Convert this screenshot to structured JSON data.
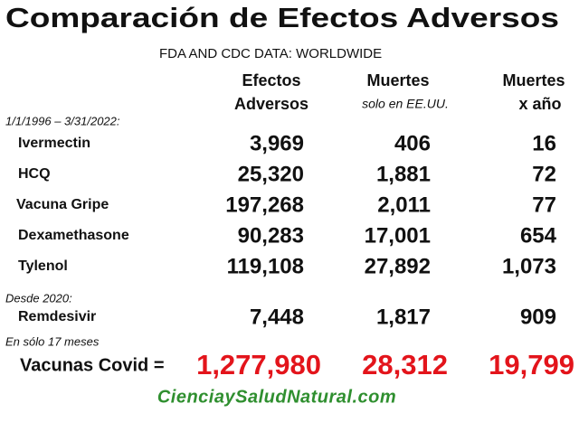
{
  "title": "Comparación de Efectos Adversos",
  "subtitle": "FDA AND CDC DATA: WORLDWIDE",
  "headers": [
    [
      "Efectos",
      "Adversos"
    ],
    [
      "Muertes",
      "solo en EE.UU."
    ],
    [
      "Muertes",
      "x año"
    ]
  ],
  "sections": [
    {
      "label": "1/1/1996 – 3/31/2022:",
      "rows": [
        {
          "name": "Ivermectin",
          "values": [
            "3,969",
            "406",
            "16"
          ]
        },
        {
          "name": "HCQ",
          "values": [
            "25,320",
            "1,881",
            "72"
          ]
        },
        {
          "name": "Vacuna Gripe",
          "values": [
            "197,268",
            "2,011",
            "77"
          ]
        },
        {
          "name": "Dexamethasone",
          "values": [
            "90,283",
            "17,001",
            "654"
          ]
        },
        {
          "name": "Tylenol",
          "values": [
            "119,108",
            "27,892",
            "1,073"
          ]
        }
      ]
    },
    {
      "label": "Desde 2020:",
      "rows": [
        {
          "name": "Remdesivir",
          "values": [
            "7,448",
            "1,817",
            "909"
          ]
        }
      ]
    },
    {
      "label": "En sólo 17 meses",
      "rows": [
        {
          "name": "Vacunas Covid =",
          "values": [
            "1,277,980",
            "28,312",
            "19,799"
          ]
        }
      ]
    }
  ],
  "footer": "CienciaySaludNatural.com"
}
